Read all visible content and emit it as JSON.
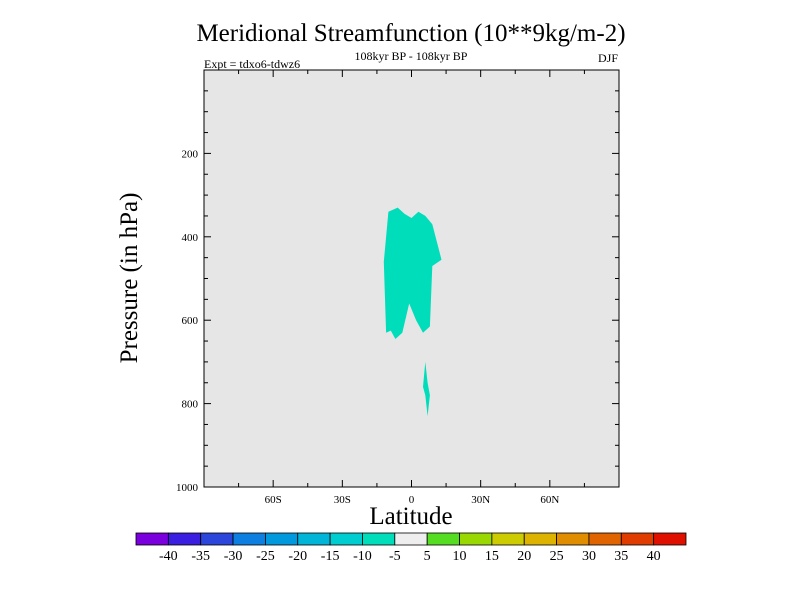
{
  "chart_data": {
    "type": "contour",
    "title": "Meridional Streamfunction (10**9kg/m-2)",
    "subtitle_center": "108kyr BP - 108kyr BP",
    "subtitle_left": "Expt = tdxo6-tdwz6",
    "subtitle_right": "DJF",
    "xlabel": "Latitude",
    "ylabel": "Pressure (in hPa)",
    "xlim": [
      -90,
      90
    ],
    "ylim": [
      1000,
      0
    ],
    "xticks": [
      {
        "value": -60,
        "label": "60S"
      },
      {
        "value": -30,
        "label": "30S"
      },
      {
        "value": 0,
        "label": "0"
      },
      {
        "value": 30,
        "label": "30N"
      },
      {
        "value": 60,
        "label": "60N"
      }
    ],
    "yticks": [
      {
        "value": 200,
        "label": "200"
      },
      {
        "value": 400,
        "label": "400"
      },
      {
        "value": 600,
        "label": "600"
      },
      {
        "value": 800,
        "label": "800"
      },
      {
        "value": 1000,
        "label": "1000"
      }
    ],
    "background_color": "#e6e6e6",
    "filled_regions": [
      {
        "level": "-10 to -5",
        "color": "#00ddbb",
        "points": [
          [
            -12,
            460
          ],
          [
            -10,
            340
          ],
          [
            -6,
            330
          ],
          [
            -3,
            345
          ],
          [
            0,
            355
          ],
          [
            3,
            340
          ],
          [
            6,
            350
          ],
          [
            9,
            370
          ],
          [
            13,
            455
          ],
          [
            9,
            470
          ],
          [
            8,
            615
          ],
          [
            5,
            630
          ],
          [
            2,
            600
          ],
          [
            -1,
            560
          ],
          [
            -4,
            630
          ],
          [
            -7,
            645
          ],
          [
            -9,
            625
          ],
          [
            -11,
            630
          ]
        ]
      },
      {
        "level": "-10 to -5",
        "color": "#00ddbb",
        "points": [
          [
            6,
            700
          ],
          [
            7,
            750
          ],
          [
            8,
            780
          ],
          [
            7,
            830
          ],
          [
            6,
            780
          ],
          [
            5,
            760
          ]
        ]
      }
    ],
    "colorbar": {
      "labels": [
        "-40",
        "-35",
        "-30",
        "-25",
        "-20",
        "-15",
        "-10",
        "-5",
        "5",
        "10",
        "15",
        "20",
        "25",
        "30",
        "35",
        "40"
      ],
      "colors": [
        "#7a00dd",
        "#3b1fe0",
        "#2c45da",
        "#0d7fe0",
        "#0099dd",
        "#00b5d8",
        "#00cdd0",
        "#00ddbb",
        "#eeeeee",
        "#55dd22",
        "#99d800",
        "#cccc00",
        "#ddb300",
        "#e08d00",
        "#e06500",
        "#e03c00",
        "#e01000"
      ]
    }
  }
}
